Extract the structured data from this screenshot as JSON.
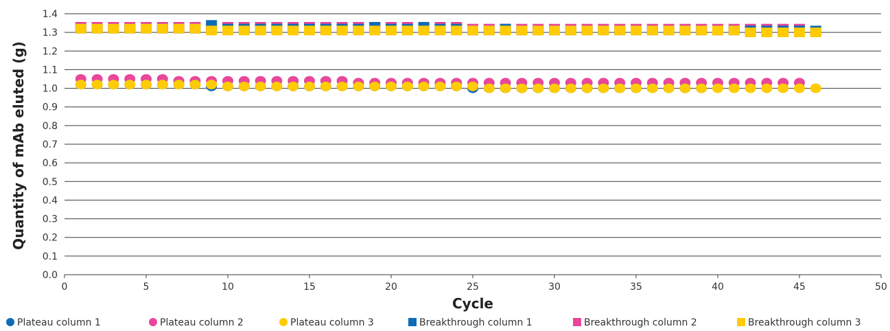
{
  "chart_data": {
    "type": "scatter",
    "title": "",
    "xlabel": "Cycle",
    "ylabel": "Quantity of mAb eluted (g)",
    "xlim": [
      0,
      50
    ],
    "ylim": [
      0.0,
      1.4
    ],
    "x_ticks": [
      "0",
      "5",
      "10",
      "15",
      "20",
      "25",
      "30",
      "35",
      "40",
      "45",
      "50"
    ],
    "y_ticks": [
      "0.0",
      "0.1",
      "0.2",
      "0.3",
      "0.4",
      "0.5",
      "0.6",
      "0.7",
      "0.8",
      "0.9",
      "1.0",
      "1.1",
      "1.2",
      "1.3",
      "1.4"
    ],
    "grid": "horizontal",
    "legend_position": "bottom",
    "series": [
      {
        "name": "Plateau column 1",
        "marker": "circle",
        "color": "#0d6cb5",
        "x": [
          1,
          2,
          3,
          4,
          5,
          6,
          7,
          8,
          9,
          10,
          11,
          12,
          13,
          14,
          15,
          16,
          17,
          18,
          19,
          20,
          21,
          22,
          23,
          24,
          25,
          26,
          27,
          28,
          29,
          30,
          31,
          32,
          33,
          34,
          35,
          36,
          37,
          38,
          39
        ],
        "y": [
          1.02,
          1.02,
          1.02,
          1.02,
          1.02,
          1.02,
          1.02,
          1.02,
          1.01,
          1.01,
          1.01,
          1.01,
          1.01,
          1.01,
          1.01,
          1.01,
          1.01,
          1.01,
          1.01,
          1.01,
          1.01,
          1.01,
          1.01,
          1.01,
          1.0,
          1.0,
          1.0,
          1.0,
          1.0,
          1.0,
          1.0,
          1.0,
          1.0,
          1.0,
          1.0,
          1.0,
          1.0,
          1.0,
          1.0
        ]
      },
      {
        "name": "Plateau column 2",
        "marker": "circle",
        "color": "#e8479c",
        "x": [
          1,
          2,
          3,
          4,
          5,
          6,
          7,
          8,
          9,
          10,
          11,
          12,
          13,
          14,
          15,
          16,
          17,
          18,
          19,
          20,
          21,
          22,
          23,
          24,
          25,
          26,
          27,
          28,
          29,
          30,
          31,
          32,
          33,
          34,
          35,
          36,
          37,
          38,
          39,
          40,
          41,
          42,
          43,
          44,
          45
        ],
        "y": [
          1.05,
          1.05,
          1.05,
          1.05,
          1.05,
          1.05,
          1.04,
          1.04,
          1.04,
          1.04,
          1.04,
          1.04,
          1.04,
          1.04,
          1.04,
          1.04,
          1.04,
          1.03,
          1.03,
          1.03,
          1.03,
          1.03,
          1.03,
          1.03,
          1.03,
          1.03,
          1.03,
          1.03,
          1.03,
          1.03,
          1.03,
          1.03,
          1.03,
          1.03,
          1.03,
          1.03,
          1.03,
          1.03,
          1.03,
          1.03,
          1.03,
          1.03,
          1.03,
          1.03,
          1.03
        ]
      },
      {
        "name": "Plateau column 3",
        "marker": "circle",
        "color": "#ffcb05",
        "x": [
          1,
          2,
          3,
          4,
          5,
          6,
          7,
          8,
          9,
          10,
          11,
          12,
          13,
          14,
          15,
          16,
          17,
          18,
          19,
          20,
          21,
          22,
          23,
          24,
          25,
          26,
          27,
          28,
          29,
          30,
          31,
          32,
          33,
          34,
          35,
          36,
          37,
          38,
          39,
          40,
          41,
          42,
          43,
          44,
          45,
          46
        ],
        "y": [
          1.02,
          1.02,
          1.02,
          1.02,
          1.02,
          1.02,
          1.02,
          1.02,
          1.02,
          1.01,
          1.01,
          1.01,
          1.01,
          1.01,
          1.01,
          1.01,
          1.01,
          1.01,
          1.01,
          1.01,
          1.01,
          1.01,
          1.01,
          1.01,
          1.01,
          1.0,
          1.0,
          1.0,
          1.0,
          1.0,
          1.0,
          1.0,
          1.0,
          1.0,
          1.0,
          1.0,
          1.0,
          1.0,
          1.0,
          1.0,
          1.0,
          1.0,
          1.0,
          1.0,
          1.0,
          1.0
        ]
      },
      {
        "name": "Breakthrough column 1",
        "marker": "square",
        "color": "#0d6cb5",
        "x": [
          1,
          2,
          3,
          4,
          5,
          6,
          7,
          8,
          9,
          10,
          11,
          12,
          13,
          14,
          15,
          16,
          17,
          18,
          19,
          20,
          21,
          22,
          23,
          24,
          25,
          26,
          27,
          28,
          29,
          30,
          31,
          32,
          33,
          34,
          35,
          36,
          37,
          38,
          39,
          40,
          41,
          42,
          43,
          44,
          45,
          46
        ],
        "y": [
          1.32,
          1.32,
          1.32,
          1.32,
          1.32,
          1.32,
          1.32,
          1.32,
          1.34,
          1.32,
          1.32,
          1.32,
          1.32,
          1.32,
          1.32,
          1.32,
          1.32,
          1.32,
          1.33,
          1.32,
          1.32,
          1.33,
          1.32,
          1.32,
          1.31,
          1.31,
          1.32,
          1.31,
          1.31,
          1.31,
          1.31,
          1.31,
          1.31,
          1.31,
          1.31,
          1.31,
          1.31,
          1.31,
          1.31,
          1.31,
          1.31,
          1.31,
          1.31,
          1.31,
          1.31,
          1.31
        ]
      },
      {
        "name": "Breakthrough column 2",
        "marker": "square",
        "color": "#e8479c",
        "x": [
          1,
          2,
          3,
          4,
          5,
          6,
          7,
          8,
          9,
          10,
          11,
          12,
          13,
          14,
          15,
          16,
          17,
          18,
          19,
          20,
          21,
          22,
          23,
          24,
          25,
          26,
          27,
          28,
          29,
          30,
          31,
          32,
          33,
          34,
          35,
          36,
          37,
          38,
          39,
          40,
          41,
          42,
          43,
          44,
          45
        ],
        "y": [
          1.33,
          1.33,
          1.33,
          1.33,
          1.33,
          1.33,
          1.33,
          1.33,
          1.33,
          1.33,
          1.33,
          1.33,
          1.33,
          1.33,
          1.33,
          1.33,
          1.33,
          1.33,
          1.33,
          1.33,
          1.33,
          1.33,
          1.33,
          1.33,
          1.32,
          1.32,
          1.32,
          1.32,
          1.32,
          1.32,
          1.32,
          1.32,
          1.32,
          1.32,
          1.32,
          1.32,
          1.32,
          1.32,
          1.32,
          1.32,
          1.32,
          1.32,
          1.32,
          1.32,
          1.32
        ]
      },
      {
        "name": "Breakthrough column 3",
        "marker": "square",
        "color": "#ffcb05",
        "x": [
          1,
          2,
          3,
          4,
          5,
          6,
          7,
          8,
          9,
          10,
          11,
          12,
          13,
          14,
          15,
          16,
          17,
          18,
          19,
          20,
          21,
          22,
          23,
          24,
          25,
          26,
          27,
          28,
          29,
          30,
          31,
          32,
          33,
          34,
          35,
          36,
          37,
          38,
          39,
          40,
          41,
          42,
          43,
          44,
          45,
          46
        ],
        "y": [
          1.32,
          1.32,
          1.32,
          1.32,
          1.32,
          1.32,
          1.32,
          1.32,
          1.31,
          1.31,
          1.31,
          1.31,
          1.31,
          1.31,
          1.31,
          1.31,
          1.31,
          1.31,
          1.31,
          1.31,
          1.31,
          1.31,
          1.31,
          1.31,
          1.31,
          1.31,
          1.31,
          1.31,
          1.31,
          1.31,
          1.31,
          1.31,
          1.31,
          1.31,
          1.31,
          1.31,
          1.31,
          1.31,
          1.31,
          1.31,
          1.31,
          1.3,
          1.3,
          1.3,
          1.3,
          1.3
        ]
      }
    ]
  }
}
